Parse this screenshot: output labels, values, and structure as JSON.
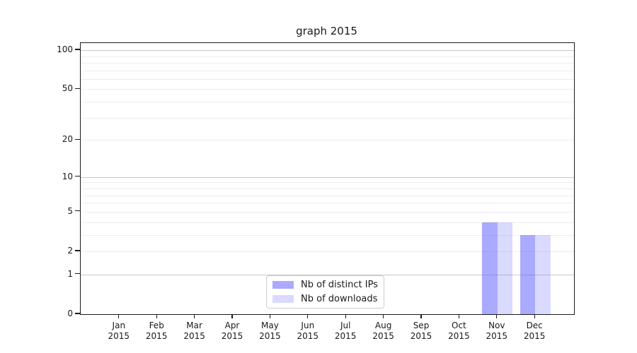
{
  "chart_data": {
    "type": "bar",
    "title": "graph 2015",
    "categories": [
      "Jan",
      "Feb",
      "Mar",
      "Apr",
      "May",
      "Jun",
      "Jul",
      "Aug",
      "Sep",
      "Oct",
      "Nov",
      "Dec"
    ],
    "category_sublabel": "2015",
    "series": [
      {
        "name": "Nb of distinct IPs",
        "values": [
          0,
          0,
          0,
          0,
          0,
          0,
          0,
          0,
          0,
          0,
          4,
          3
        ]
      },
      {
        "name": "Nb of downloads",
        "values": [
          0,
          0,
          0,
          0,
          0,
          0,
          0,
          0,
          0,
          0,
          4,
          3
        ]
      }
    ],
    "y_axis": {
      "scale": "log1p",
      "tick_labels": [
        100,
        50,
        20,
        10,
        5,
        2,
        1,
        0
      ],
      "gridlines": [
        1,
        2,
        3,
        4,
        5,
        6,
        7,
        8,
        9,
        10,
        20,
        30,
        40,
        50,
        60,
        70,
        80,
        90,
        100
      ],
      "major_gridlines": [
        1,
        10,
        100
      ],
      "ylim": [
        0,
        114
      ]
    },
    "legend": {
      "position": "lower center",
      "entries": [
        "Nb of distinct IPs",
        "Nb of downloads"
      ]
    },
    "grid": true
  },
  "colors": {
    "series_fill": [
      "rgba(85,85,255,0.5)",
      "rgba(85,85,255,0.22)"
    ],
    "grid_minor": "#ededed",
    "grid_major": "#c9c9c9",
    "spine": "#1a1a1a",
    "text": "#191919",
    "legend_border": "#cccccc",
    "background": "#ffffff"
  }
}
